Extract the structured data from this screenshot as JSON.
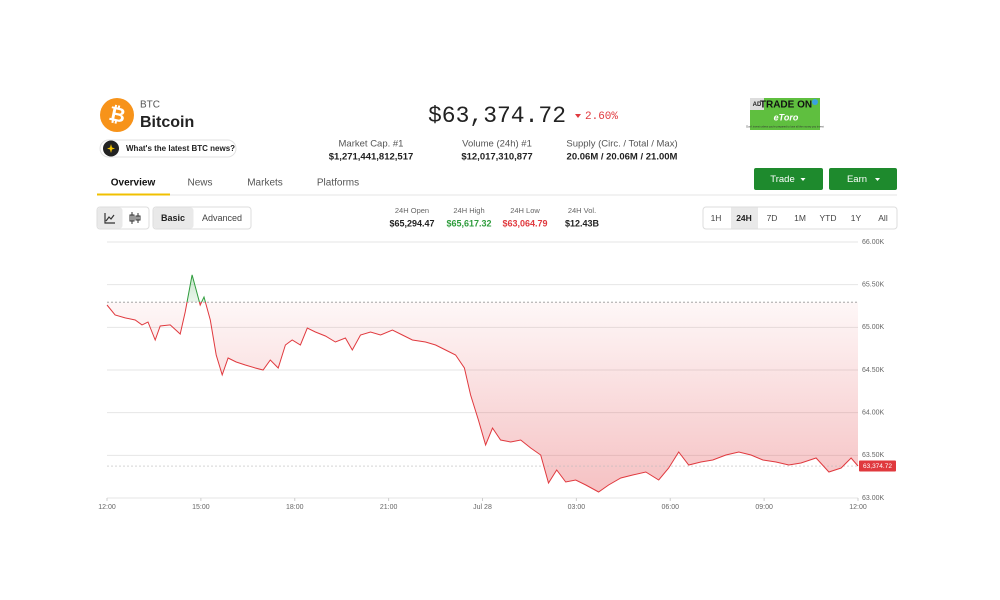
{
  "header": {
    "logo_symbol": "₿",
    "symbol": "BTC",
    "name": "Bitcoin",
    "news_prompt": "What's the latest BTC news?",
    "price": "$63,374.72",
    "change": "2.60%"
  },
  "ad": {
    "badge": "AD",
    "headline": "TRADE ON",
    "brand": "eToro",
    "fine_print": "Don't invest unless you're prepared to lose all the money you invest"
  },
  "stats": [
    {
      "label": "Market Cap. #1",
      "value": "$1,271,441,812,517"
    },
    {
      "label": "Volume (24h) #1",
      "value": "$12,017,310,877"
    },
    {
      "label": "Supply (Circ. / Total / Max)",
      "value": "20.06M / 20.06M / 21.00M"
    }
  ],
  "tabs": [
    "Overview",
    "News",
    "Markets",
    "Platforms"
  ],
  "buttons": [
    "Trade",
    "Earn"
  ],
  "views": [
    "Basic",
    "Advanced"
  ],
  "day_stats": [
    {
      "label": "24H Open",
      "value": "$65,294.47"
    },
    {
      "label": "24H High",
      "value": "$65,617.32"
    },
    {
      "label": "24H Low",
      "value": "$63,064.79"
    },
    {
      "label": "24H Vol.",
      "value": "$12.43B"
    }
  ],
  "ranges": [
    "1H",
    "24H",
    "7D",
    "1M",
    "YTD",
    "1Y",
    "All"
  ],
  "chart_data": {
    "type": "line",
    "x": [
      0,
      0.26,
      0.58,
      0.9,
      1.12,
      1.31,
      1.54,
      1.7,
      2.02,
      2.34,
      2.5,
      2.72,
      2.85,
      2.98,
      3.1,
      3.3,
      3.49,
      3.68,
      3.87,
      4.13,
      4.42,
      4.74,
      4.99,
      5.22,
      5.47,
      5.7,
      5.92,
      6.18,
      6.4,
      6.66,
      6.98,
      7.3,
      7.62,
      7.84,
      8.1,
      8.42,
      8.74,
      9.12,
      9.44,
      9.76,
      10.18,
      10.5,
      10.82,
      11.14,
      11.42,
      11.62,
      11.87,
      12.1,
      12.32,
      12.58,
      12.9,
      13.22,
      13.54,
      13.86,
      14.11,
      14.37,
      14.66,
      14.98,
      15.3,
      15.71,
      16.03,
      16.42,
      16.8,
      17.22,
      17.63,
      17.95,
      18.27,
      18.59,
      18.98,
      19.36,
      19.78,
      20.19,
      20.58,
      20.96,
      21.38,
      21.79,
      22.18,
      22.66,
      23.07,
      23.46,
      23.78,
      24
    ],
    "values": [
      65262,
      65145,
      65110,
      65086,
      65028,
      65063,
      64852,
      65016,
      65028,
      64922,
      65180,
      65614,
      65438,
      65262,
      65356,
      65086,
      64676,
      64442,
      64641,
      64594,
      64559,
      64524,
      64500,
      64617,
      64524,
      64793,
      64852,
      64793,
      64992,
      64945,
      64899,
      64828,
      64875,
      64734,
      64910,
      64945,
      64910,
      64969,
      64910,
      64852,
      64828,
      64793,
      64734,
      64676,
      64524,
      64207,
      63914,
      63621,
      63820,
      63680,
      63656,
      63680,
      63586,
      63504,
      63176,
      63328,
      63188,
      63211,
      63152,
      63070,
      63152,
      63234,
      63270,
      63305,
      63211,
      63352,
      63539,
      63387,
      63422,
      63445,
      63504,
      63539,
      63504,
      63445,
      63422,
      63387,
      63410,
      63469,
      63305,
      63352,
      63469,
      63375
    ],
    "reference_line": 65294.47,
    "last_price": {
      "value": 63374.72,
      "label": "63,374.72"
    },
    "up_color": "#2e9c3c",
    "down_color": "#e0393e",
    "xlim": [
      0,
      24
    ],
    "xticks": [
      {
        "value": 0,
        "label": "12:00"
      },
      {
        "value": 3,
        "label": "15:00"
      },
      {
        "value": 6,
        "label": "18:00"
      },
      {
        "value": 9,
        "label": "21:00"
      },
      {
        "value": 12,
        "label": "Jul 28"
      },
      {
        "value": 15,
        "label": "03:00"
      },
      {
        "value": 18,
        "label": "06:00"
      },
      {
        "value": 21,
        "label": "09:00"
      },
      {
        "value": 24,
        "label": "12:00"
      }
    ],
    "ylim": [
      63000,
      66000
    ],
    "yticks": [
      {
        "value": 63000,
        "label": "63.00K"
      },
      {
        "value": 63500,
        "label": "63.50K"
      },
      {
        "value": 64000,
        "label": "64.00K"
      },
      {
        "value": 64500,
        "label": "64.50K"
      },
      {
        "value": 65000,
        "label": "65.00K"
      },
      {
        "value": 65500,
        "label": "65.50K"
      },
      {
        "value": 66000,
        "label": "66.00K"
      }
    ],
    "grid": true
  }
}
